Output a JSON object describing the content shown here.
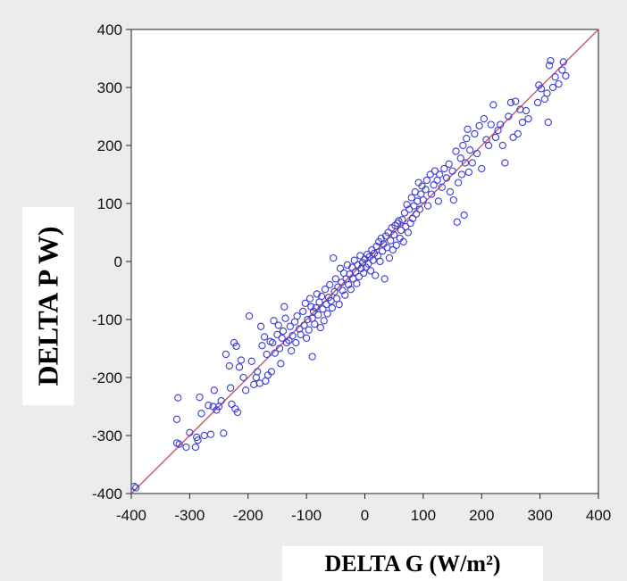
{
  "chart_data": {
    "type": "scatter",
    "xlabel": "DELTA G (W/m²)",
    "ylabel": "DELTA P W)",
    "xlim": [
      -400,
      400
    ],
    "ylim": [
      -400,
      400
    ],
    "xticks": [
      "-400",
      "-300",
      "-200",
      "-100",
      "0",
      "100",
      "200",
      "300",
      "400"
    ],
    "yticks": [
      "-400",
      "-300",
      "-200",
      "-100",
      "0",
      "100",
      "200",
      "300",
      "400"
    ],
    "grid": false,
    "marker_color": "#3a3ad6",
    "reference_line": {
      "from": [
        -400,
        -400
      ],
      "to": [
        400,
        400
      ],
      "color": "#c0596a"
    },
    "points": [
      [
        -395,
        -388
      ],
      [
        -392,
        -390
      ],
      [
        -320,
        -235
      ],
      [
        -322,
        -272
      ],
      [
        -322,
        -313
      ],
      [
        -318,
        -315
      ],
      [
        -306,
        -320
      ],
      [
        -300,
        -295
      ],
      [
        -290,
        -320
      ],
      [
        -288,
        -303
      ],
      [
        -286,
        -308
      ],
      [
        -283,
        -234
      ],
      [
        -280,
        -262
      ],
      [
        -275,
        -300
      ],
      [
        -268,
        -248
      ],
      [
        -264,
        -298
      ],
      [
        -260,
        -250
      ],
      [
        -258,
        -222
      ],
      [
        -254,
        -256
      ],
      [
        -250,
        -250
      ],
      [
        -246,
        -240
      ],
      [
        -242,
        -296
      ],
      [
        -238,
        -160
      ],
      [
        -232,
        -180
      ],
      [
        -230,
        -218
      ],
      [
        -228,
        -246
      ],
      [
        -224,
        -140
      ],
      [
        -222,
        -254
      ],
      [
        -220,
        -146
      ],
      [
        -218,
        -260
      ],
      [
        -215,
        -182
      ],
      [
        -212,
        -170
      ],
      [
        -208,
        -200
      ],
      [
        -204,
        -222
      ],
      [
        -198,
        -94
      ],
      [
        -194,
        -172
      ],
      [
        -190,
        -212
      ],
      [
        -186,
        -200
      ],
      [
        -184,
        -190
      ],
      [
        -180,
        -210
      ],
      [
        -178,
        -112
      ],
      [
        -176,
        -145
      ],
      [
        -172,
        -130
      ],
      [
        -170,
        -206
      ],
      [
        -168,
        -160
      ],
      [
        -166,
        -196
      ],
      [
        -162,
        -138
      ],
      [
        -160,
        -190
      ],
      [
        -158,
        -140
      ],
      [
        -156,
        -102
      ],
      [
        -154,
        -158
      ],
      [
        -150,
        -126
      ],
      [
        -148,
        -110
      ],
      [
        -146,
        -150
      ],
      [
        -144,
        -176
      ],
      [
        -142,
        -132
      ],
      [
        -140,
        -120
      ],
      [
        -138,
        -78
      ],
      [
        -136,
        -98
      ],
      [
        -134,
        -140
      ],
      [
        -130,
        -136
      ],
      [
        -128,
        -112
      ],
      [
        -126,
        -154
      ],
      [
        -124,
        -128
      ],
      [
        -120,
        -104
      ],
      [
        -118,
        -140
      ],
      [
        -116,
        -94
      ],
      [
        -112,
        -116
      ],
      [
        -110,
        -126
      ],
      [
        -106,
        -86
      ],
      [
        -104,
        -110
      ],
      [
        -102,
        -72
      ],
      [
        -100,
        -132
      ],
      [
        -98,
        -100
      ],
      [
        -96,
        -118
      ],
      [
        -94,
        -64
      ],
      [
        -92,
        -78
      ],
      [
        -90,
        -98
      ],
      [
        -90,
        -164
      ],
      [
        -88,
        -86
      ],
      [
        -86,
        -108
      ],
      [
        -84,
        -80
      ],
      [
        -82,
        -56
      ],
      [
        -80,
        -92
      ],
      [
        -78,
        -70
      ],
      [
        -76,
        -114
      ],
      [
        -74,
        -60
      ],
      [
        -72,
        -82
      ],
      [
        -70,
        -102
      ],
      [
        -68,
        -48
      ],
      [
        -66,
        -74
      ],
      [
        -64,
        -90
      ],
      [
        -62,
        -62
      ],
      [
        -60,
        -40
      ],
      [
        -58,
        -68
      ],
      [
        -56,
        -80
      ],
      [
        -54,
        6
      ],
      [
        -52,
        -52
      ],
      [
        -50,
        -30
      ],
      [
        -48,
        -64
      ],
      [
        -46,
        -44
      ],
      [
        -44,
        -74
      ],
      [
        -42,
        -12
      ],
      [
        -40,
        -36
      ],
      [
        -38,
        -50
      ],
      [
        -36,
        -20
      ],
      [
        -34,
        -58
      ],
      [
        -32,
        -30
      ],
      [
        -30,
        -6
      ],
      [
        -28,
        -40
      ],
      [
        -26,
        -22
      ],
      [
        -24,
        -48
      ],
      [
        -22,
        -10
      ],
      [
        -20,
        -30
      ],
      [
        -18,
        2
      ],
      [
        -16,
        -18
      ],
      [
        -14,
        -38
      ],
      [
        -12,
        -6
      ],
      [
        -10,
        -26
      ],
      [
        -8,
        10
      ],
      [
        -6,
        -12
      ],
      [
        -4,
        -2
      ],
      [
        -2,
        -20
      ],
      [
        0,
        4
      ],
      [
        2,
        -10
      ],
      [
        4,
        12
      ],
      [
        6,
        -4
      ],
      [
        8,
        8
      ],
      [
        10,
        -16
      ],
      [
        12,
        20
      ],
      [
        14,
        2
      ],
      [
        16,
        14
      ],
      [
        18,
        -24
      ],
      [
        20,
        26
      ],
      [
        22,
        10
      ],
      [
        24,
        34
      ],
      [
        26,
        0
      ],
      [
        28,
        40
      ],
      [
        30,
        18
      ],
      [
        32,
        30
      ],
      [
        34,
        -30
      ],
      [
        36,
        44
      ],
      [
        38,
        24
      ],
      [
        40,
        50
      ],
      [
        42,
        6
      ],
      [
        44,
        36
      ],
      [
        46,
        58
      ],
      [
        48,
        20
      ],
      [
        50,
        46
      ],
      [
        52,
        62
      ],
      [
        54,
        28
      ],
      [
        56,
        66
      ],
      [
        58,
        70
      ],
      [
        60,
        40
      ],
      [
        62,
        54
      ],
      [
        64,
        72
      ],
      [
        66,
        34
      ],
      [
        68,
        84
      ],
      [
        70,
        60
      ],
      [
        72,
        98
      ],
      [
        74,
        50
      ],
      [
        76,
        90
      ],
      [
        78,
        66
      ],
      [
        80,
        110
      ],
      [
        82,
        74
      ],
      [
        84,
        96
      ],
      [
        86,
        120
      ],
      [
        88,
        82
      ],
      [
        90,
        104
      ],
      [
        92,
        136
      ],
      [
        94,
        90
      ],
      [
        96,
        116
      ],
      [
        98,
        130
      ],
      [
        100,
        106
      ],
      [
        104,
        124
      ],
      [
        106,
        140
      ],
      [
        108,
        96
      ],
      [
        112,
        150
      ],
      [
        114,
        116
      ],
      [
        118,
        132
      ],
      [
        120,
        156
      ],
      [
        124,
        140
      ],
      [
        126,
        104
      ],
      [
        128,
        150
      ],
      [
        132,
        128
      ],
      [
        136,
        160
      ],
      [
        140,
        144
      ],
      [
        144,
        168
      ],
      [
        146,
        120
      ],
      [
        150,
        156
      ],
      [
        152,
        106
      ],
      [
        156,
        190
      ],
      [
        158,
        68
      ],
      [
        160,
        136
      ],
      [
        164,
        178
      ],
      [
        166,
        150
      ],
      [
        168,
        200
      ],
      [
        170,
        80
      ],
      [
        172,
        170
      ],
      [
        174,
        212
      ],
      [
        176,
        228
      ],
      [
        178,
        154
      ],
      [
        180,
        192
      ],
      [
        184,
        170
      ],
      [
        188,
        220
      ],
      [
        192,
        186
      ],
      [
        196,
        234
      ],
      [
        200,
        160
      ],
      [
        204,
        246
      ],
      [
        208,
        210
      ],
      [
        212,
        200
      ],
      [
        216,
        236
      ],
      [
        220,
        270
      ],
      [
        224,
        214
      ],
      [
        228,
        226
      ],
      [
        232,
        236
      ],
      [
        236,
        200
      ],
      [
        240,
        170
      ],
      [
        246,
        250
      ],
      [
        250,
        274
      ],
      [
        254,
        214
      ],
      [
        258,
        276
      ],
      [
        262,
        220
      ],
      [
        266,
        262
      ],
      [
        270,
        240
      ],
      [
        276,
        260
      ],
      [
        280,
        246
      ],
      [
        296,
        274
      ],
      [
        298,
        304
      ],
      [
        302,
        298
      ],
      [
        308,
        280
      ],
      [
        312,
        290
      ],
      [
        314,
        240
      ],
      [
        316,
        338
      ],
      [
        318,
        346
      ],
      [
        322,
        300
      ],
      [
        326,
        318
      ],
      [
        332,
        306
      ],
      [
        338,
        330
      ],
      [
        340,
        344
      ],
      [
        344,
        320
      ]
    ]
  }
}
